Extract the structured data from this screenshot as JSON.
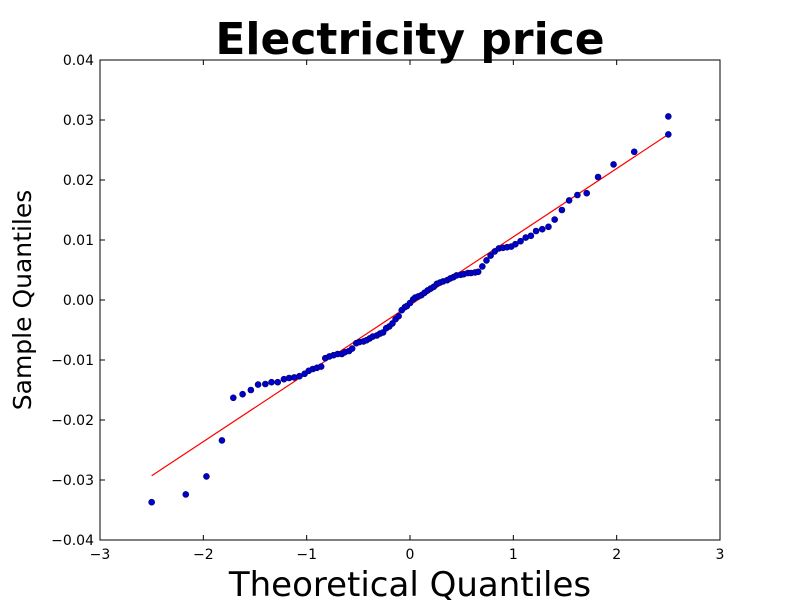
{
  "chart_data": {
    "type": "scatter",
    "title": "Electricity price",
    "xlabel": "Theoretical Quantiles",
    "ylabel": "Sample Quantiles",
    "xlim": [
      -3,
      3
    ],
    "ylim": [
      -0.04,
      0.04
    ],
    "x_ticks": [
      "−3",
      "−2",
      "−1",
      "0",
      "1",
      "2",
      "3"
    ],
    "x_tick_values": [
      -3,
      -2,
      -1,
      0,
      1,
      2,
      3
    ],
    "y_ticks": [
      "−0.04",
      "−0.03",
      "−0.02",
      "−0.01",
      "0.00",
      "0.01",
      "0.02",
      "0.03",
      "0.04"
    ],
    "y_tick_values": [
      -0.04,
      -0.03,
      -0.02,
      -0.01,
      0.0,
      0.01,
      0.02,
      0.03,
      0.04
    ],
    "grid": false,
    "reference_line": {
      "x": [
        -2.5,
        2.5
      ],
      "y": [
        -0.0293,
        0.0276
      ],
      "color": "#ff0000"
    },
    "point_color": "#0000cc",
    "points": [
      {
        "x": -2.5,
        "y": -0.0337
      },
      {
        "x": -2.17,
        "y": -0.0324
      },
      {
        "x": -1.97,
        "y": -0.0294
      },
      {
        "x": -1.82,
        "y": -0.0234
      },
      {
        "x": -1.71,
        "y": -0.0163
      },
      {
        "x": -1.62,
        "y": -0.0157
      },
      {
        "x": -1.54,
        "y": -0.015
      },
      {
        "x": -1.47,
        "y": -0.0141
      },
      {
        "x": -1.4,
        "y": -0.014
      },
      {
        "x": -1.34,
        "y": -0.0137
      },
      {
        "x": -1.28,
        "y": -0.0137
      },
      {
        "x": -1.22,
        "y": -0.0132
      },
      {
        "x": -1.17,
        "y": -0.013
      },
      {
        "x": -1.12,
        "y": -0.0129
      },
      {
        "x": -1.07,
        "y": -0.0127
      },
      {
        "x": -1.02,
        "y": -0.0123
      },
      {
        "x": -0.98,
        "y": -0.0118
      },
      {
        "x": -0.94,
        "y": -0.0115
      },
      {
        "x": -0.9,
        "y": -0.0113
      },
      {
        "x": -0.86,
        "y": -0.0111
      },
      {
        "x": -0.82,
        "y": -0.0097
      },
      {
        "x": -0.78,
        "y": -0.0094
      },
      {
        "x": -0.74,
        "y": -0.0092
      },
      {
        "x": -0.7,
        "y": -0.009
      },
      {
        "x": -0.66,
        "y": -0.009
      },
      {
        "x": -0.63,
        "y": -0.0087
      },
      {
        "x": -0.59,
        "y": -0.0085
      },
      {
        "x": -0.56,
        "y": -0.0081
      },
      {
        "x": -0.52,
        "y": -0.0072
      },
      {
        "x": -0.49,
        "y": -0.007
      },
      {
        "x": -0.45,
        "y": -0.0069
      },
      {
        "x": -0.42,
        "y": -0.0067
      },
      {
        "x": -0.39,
        "y": -0.0064
      },
      {
        "x": -0.36,
        "y": -0.0061
      },
      {
        "x": -0.32,
        "y": -0.0059
      },
      {
        "x": -0.29,
        "y": -0.0056
      },
      {
        "x": -0.26,
        "y": -0.0054
      },
      {
        "x": -0.23,
        "y": -0.0047
      },
      {
        "x": -0.2,
        "y": -0.0044
      },
      {
        "x": -0.17,
        "y": -0.0039
      },
      {
        "x": -0.14,
        "y": -0.0032
      },
      {
        "x": -0.11,
        "y": -0.0027
      },
      {
        "x": -0.08,
        "y": -0.0017
      },
      {
        "x": -0.05,
        "y": -0.0012
      },
      {
        "x": -0.03,
        "y": -0.001
      },
      {
        "x": 0.0,
        "y": -0.0005
      },
      {
        "x": 0.03,
        "y": 0.0001
      },
      {
        "x": 0.05,
        "y": 0.0004
      },
      {
        "x": 0.08,
        "y": 0.0006
      },
      {
        "x": 0.11,
        "y": 0.0008
      },
      {
        "x": 0.14,
        "y": 0.0012
      },
      {
        "x": 0.17,
        "y": 0.0016
      },
      {
        "x": 0.2,
        "y": 0.0019
      },
      {
        "x": 0.23,
        "y": 0.0022
      },
      {
        "x": 0.26,
        "y": 0.0027
      },
      {
        "x": 0.29,
        "y": 0.0029
      },
      {
        "x": 0.32,
        "y": 0.0031
      },
      {
        "x": 0.36,
        "y": 0.0033
      },
      {
        "x": 0.39,
        "y": 0.0036
      },
      {
        "x": 0.42,
        "y": 0.0038
      },
      {
        "x": 0.45,
        "y": 0.0041
      },
      {
        "x": 0.49,
        "y": 0.0042
      },
      {
        "x": 0.52,
        "y": 0.0043
      },
      {
        "x": 0.56,
        "y": 0.0045
      },
      {
        "x": 0.59,
        "y": 0.0045
      },
      {
        "x": 0.63,
        "y": 0.0046
      },
      {
        "x": 0.66,
        "y": 0.0047
      },
      {
        "x": 0.7,
        "y": 0.0056
      },
      {
        "x": 0.74,
        "y": 0.0066
      },
      {
        "x": 0.78,
        "y": 0.0074
      },
      {
        "x": 0.82,
        "y": 0.0081
      },
      {
        "x": 0.86,
        "y": 0.0086
      },
      {
        "x": 0.9,
        "y": 0.0087
      },
      {
        "x": 0.94,
        "y": 0.0088
      },
      {
        "x": 0.98,
        "y": 0.0089
      },
      {
        "x": 1.02,
        "y": 0.0093
      },
      {
        "x": 1.07,
        "y": 0.0098
      },
      {
        "x": 1.12,
        "y": 0.0104
      },
      {
        "x": 1.17,
        "y": 0.0107
      },
      {
        "x": 1.22,
        "y": 0.0115
      },
      {
        "x": 1.28,
        "y": 0.0118
      },
      {
        "x": 1.34,
        "y": 0.0122
      },
      {
        "x": 1.4,
        "y": 0.0134
      },
      {
        "x": 1.47,
        "y": 0.015
      },
      {
        "x": 1.54,
        "y": 0.0166
      },
      {
        "x": 1.62,
        "y": 0.0175
      },
      {
        "x": 1.71,
        "y": 0.0178
      },
      {
        "x": 1.82,
        "y": 0.0205
      },
      {
        "x": 1.97,
        "y": 0.0226
      },
      {
        "x": 2.17,
        "y": 0.0247
      },
      {
        "x": 2.5,
        "y": 0.0276
      },
      {
        "x": 2.5,
        "y": 0.0306
      }
    ]
  }
}
